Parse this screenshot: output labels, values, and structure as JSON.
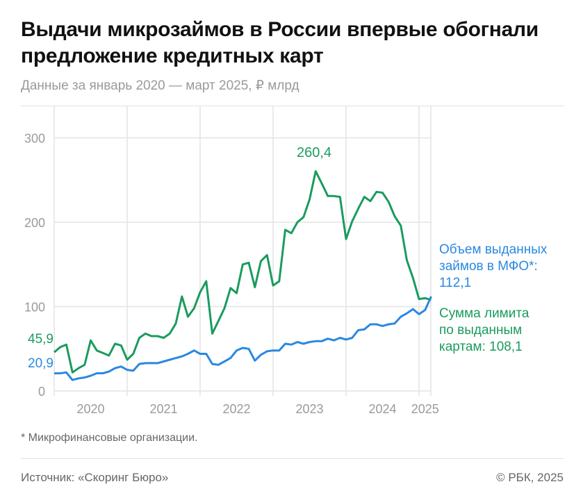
{
  "title": "Выдачи микрозаймов в России впервые обогнали предложение кредитных карт",
  "subtitle": "Данные за январь 2020 — март 2025, ₽ млрд",
  "footnote": "* Микрофинансовые организации.",
  "source": "Источник: «Скоринг Бюро»",
  "copyright": "© РБК, 2025",
  "chart_data": {
    "type": "line",
    "x_start": "2020-01",
    "x_end": "2025-03",
    "frequency": "monthly",
    "x_tick_labels": [
      "2020",
      "2021",
      "2022",
      "2023",
      "2024",
      "2025"
    ],
    "y_ticks": [
      0,
      100,
      200,
      300
    ],
    "y_tick_labels": [
      "0",
      "100",
      "200",
      "300"
    ],
    "ylim": [
      0,
      330
    ],
    "grid": true,
    "annotations": {
      "peak": "260,4",
      "green_start": "45,9",
      "blue_start": "20,9"
    },
    "series": [
      {
        "name": "Сумма лимита по выданным картам: 108,1",
        "label_lines": [
          "Сумма лимита",
          "по выданным",
          "картам: 108,1"
        ],
        "color": "#1a9b5e",
        "values": [
          45.9,
          52,
          55,
          22,
          27,
          31,
          60,
          48,
          45,
          42,
          56,
          54,
          37,
          44,
          63,
          68,
          65,
          65,
          63,
          68,
          80,
          112,
          88,
          98,
          117,
          130,
          68,
          83,
          98,
          122,
          116,
          150,
          152,
          123,
          154,
          161,
          125,
          130,
          191,
          187,
          200,
          206,
          227,
          260.4,
          246,
          231,
          231,
          230,
          180,
          201,
          216,
          230,
          225,
          236,
          235,
          224,
          207,
          196,
          155,
          134,
          109,
          110,
          108.1
        ]
      },
      {
        "name": "Объем выданных займов в МФО*: 112,1",
        "label_lines": [
          "Объем выданных",
          "займов в МФО*:",
          "112,1"
        ],
        "color": "#2a88e0",
        "values": [
          20.9,
          21,
          22,
          13,
          15,
          16,
          18,
          21,
          21,
          23,
          27,
          29,
          25,
          24,
          32,
          33,
          33,
          33,
          35,
          37,
          39,
          41,
          44,
          48,
          44,
          44,
          32,
          31,
          35,
          39,
          48,
          51,
          50,
          36,
          43,
          47,
          48,
          48,
          56,
          55,
          58,
          56,
          58,
          59,
          59,
          62,
          60,
          63,
          61,
          63,
          72,
          73,
          79,
          79,
          77,
          79,
          80,
          88,
          92,
          97,
          91,
          96,
          112.1
        ]
      }
    ]
  }
}
